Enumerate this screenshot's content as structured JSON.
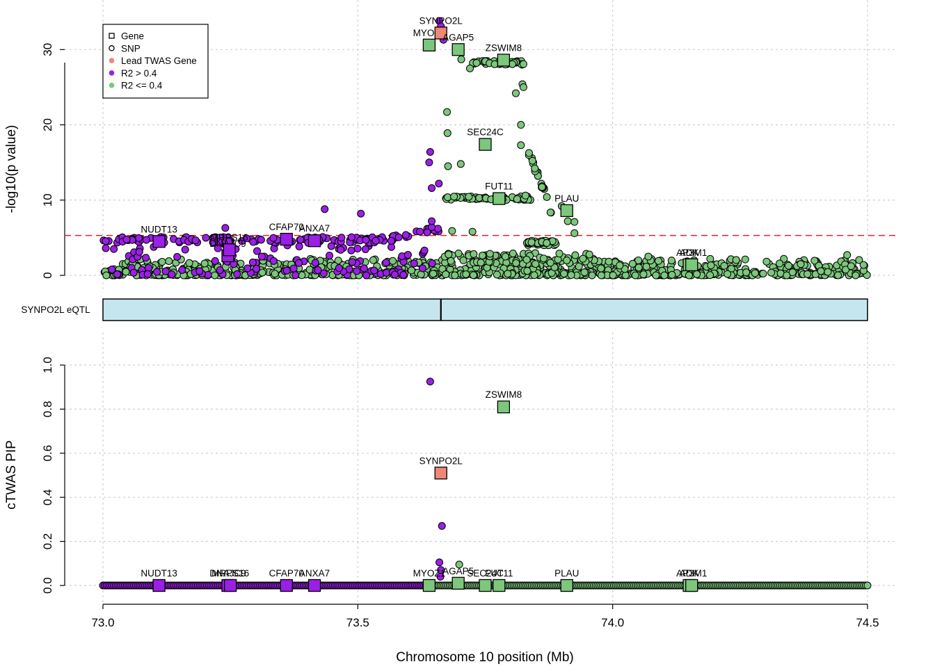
{
  "colors": {
    "purple": "#9B1FE6",
    "green": "#7DC77C",
    "salmon": "#F08674",
    "eqtl_fill": "#C4E6EF",
    "threshold": "#E0202B"
  },
  "legend": [
    {
      "label": "Gene",
      "kind": "gene-open"
    },
    {
      "label": "SNP",
      "kind": "snp-open"
    },
    {
      "label": "Lead TWAS Gene",
      "kind": "salmon"
    },
    {
      "label": "R2 > 0.4",
      "kind": "purple"
    },
    {
      "label": "R2 <= 0.4",
      "kind": "green"
    }
  ],
  "eqtl_track": {
    "label": "SYNPO2L eQTL",
    "start": 73.0,
    "end": 74.5,
    "marker": 73.663
  },
  "chart_data": [
    {
      "type": "scatter",
      "name": "association",
      "xlabel": "",
      "ylabel": "-log10(p value)",
      "xlim": [
        73.0,
        74.5
      ],
      "ylim": [
        0,
        34
      ],
      "yticks": [
        0,
        10,
        20,
        30
      ],
      "ytick_labels": [
        "0",
        "10",
        "20",
        "30"
      ],
      "threshold": 5.3,
      "genes": [
        {
          "name": "NUDT13",
          "x": 73.11,
          "y": 4.5,
          "color": "purple",
          "lead": false
        },
        {
          "name": "DNAJC9",
          "x": 73.245,
          "y": 2.6,
          "color": "purple",
          "lead": false
        },
        {
          "name": "MRPS16",
          "x": 73.248,
          "y": 3.4,
          "color": "purple",
          "lead": false
        },
        {
          "name": "CFAP70",
          "x": 73.36,
          "y": 4.8,
          "color": "purple",
          "lead": false
        },
        {
          "name": "ANXA7",
          "x": 73.415,
          "y": 4.6,
          "color": "purple",
          "lead": false
        },
        {
          "name": "MYOZ1",
          "x": 73.64,
          "y": 30.6,
          "color": "green",
          "lead": false
        },
        {
          "name": "SYNPO2L",
          "x": 73.663,
          "y": 32.2,
          "color": "salmon",
          "lead": true
        },
        {
          "name": "AGAP5",
          "x": 73.697,
          "y": 30.0,
          "color": "green",
          "lead": false
        },
        {
          "name": "ZSWIM8",
          "x": 73.786,
          "y": 28.6,
          "color": "green",
          "lead": false
        },
        {
          "name": "SEC24C",
          "x": 73.75,
          "y": 17.4,
          "color": "green",
          "lead": false
        },
        {
          "name": "FUT11",
          "x": 73.777,
          "y": 10.2,
          "color": "green",
          "lead": false
        },
        {
          "name": "PLAU",
          "x": 73.91,
          "y": 8.6,
          "color": "green",
          "lead": false
        },
        {
          "name": "ADK",
          "x": 74.15,
          "y": 1.4,
          "color": "green",
          "lead": false
        },
        {
          "name": "AP3M1",
          "x": 74.155,
          "y": 1.4,
          "color": "green",
          "lead": false
        }
      ],
      "snp_highlights": [
        {
          "x": 73.66,
          "y": 33.8,
          "color": "purple"
        },
        {
          "x": 73.663,
          "y": 33.1,
          "color": "purple"
        },
        {
          "x": 73.668,
          "y": 31.3,
          "color": "purple"
        },
        {
          "x": 73.642,
          "y": 16.4,
          "color": "purple"
        },
        {
          "x": 73.64,
          "y": 15.0,
          "color": "purple"
        },
        {
          "x": 73.645,
          "y": 11.6,
          "color": "purple"
        },
        {
          "x": 73.659,
          "y": 12.2,
          "color": "purple"
        },
        {
          "x": 73.645,
          "y": 7.2,
          "color": "purple"
        },
        {
          "x": 73.435,
          "y": 8.8,
          "color": "purple"
        },
        {
          "x": 73.506,
          "y": 8.2,
          "color": "purple"
        },
        {
          "x": 73.24,
          "y": 6.3,
          "color": "purple"
        },
        {
          "x": 73.675,
          "y": 21.7,
          "color": "green"
        },
        {
          "x": 73.676,
          "y": 18.9,
          "color": "green"
        },
        {
          "x": 73.677,
          "y": 14.5,
          "color": "green"
        },
        {
          "x": 73.702,
          "y": 14.8,
          "color": "green"
        },
        {
          "x": 73.703,
          "y": 28.7,
          "color": "green"
        },
        {
          "x": 73.72,
          "y": 27.5,
          "color": "green"
        },
        {
          "x": 73.823,
          "y": 25.4,
          "color": "green"
        },
        {
          "x": 73.825,
          "y": 25.0,
          "color": "green"
        },
        {
          "x": 73.81,
          "y": 24.2,
          "color": "green"
        },
        {
          "x": 73.82,
          "y": 20.0,
          "color": "green"
        },
        {
          "x": 73.82,
          "y": 17.3,
          "color": "green"
        },
        {
          "x": 73.9,
          "y": 9.2,
          "color": "green"
        },
        {
          "x": 73.912,
          "y": 7.2,
          "color": "green"
        },
        {
          "x": 73.925,
          "y": 7.1,
          "color": "green"
        },
        {
          "x": 73.925,
          "y": 5.6,
          "color": "green"
        },
        {
          "x": 73.685,
          "y": 5.9,
          "color": "green"
        },
        {
          "x": 73.725,
          "y": 5.8,
          "color": "green"
        },
        {
          "x": 73.829,
          "y": 10.6,
          "color": "green"
        },
        {
          "x": 74.07,
          "y": 2.5,
          "color": "green"
        },
        {
          "x": 74.46,
          "y": 2.7,
          "color": "green"
        }
      ]
    },
    {
      "type": "scatter",
      "name": "pip",
      "xlabel": "Chromosome 10 position (Mb)",
      "ylabel": "cTWAS PIP",
      "xlim": [
        73.0,
        74.5
      ],
      "ylim": [
        0,
        1
      ],
      "xticks": [
        73.0,
        73.5,
        74.0,
        74.5
      ],
      "xtick_labels": [
        "73.0",
        "73.5",
        "74.0",
        "74.5"
      ],
      "yticks": [
        0.0,
        0.2,
        0.4,
        0.6,
        0.8,
        1.0
      ],
      "ytick_labels": [
        "0.0",
        "0.2",
        "0.4",
        "0.6",
        "0.8",
        "1.0"
      ],
      "genes": [
        {
          "name": "NUDT13",
          "x": 73.11,
          "y": 0.0,
          "color": "purple"
        },
        {
          "name": "DNAJC9",
          "x": 73.245,
          "y": 0.0,
          "color": "purple"
        },
        {
          "name": "MRPS16",
          "x": 73.25,
          "y": 0.0,
          "color": "purple"
        },
        {
          "name": "CFAP70",
          "x": 73.36,
          "y": 0.0,
          "color": "purple"
        },
        {
          "name": "ANXA7",
          "x": 73.415,
          "y": 0.0,
          "color": "purple"
        },
        {
          "name": "MYOZ1",
          "x": 73.64,
          "y": 0.0,
          "color": "green"
        },
        {
          "name": "SYNPO2L",
          "x": 73.663,
          "y": 0.51,
          "color": "salmon"
        },
        {
          "name": "AGAP5",
          "x": 73.697,
          "y": 0.01,
          "color": "green"
        },
        {
          "name": "SEC24C",
          "x": 73.75,
          "y": 0.0,
          "color": "green"
        },
        {
          "name": "FUT11",
          "x": 73.777,
          "y": 0.0,
          "color": "green"
        },
        {
          "name": "ZSWIM8",
          "x": 73.786,
          "y": 0.81,
          "color": "green"
        },
        {
          "name": "PLAU",
          "x": 73.91,
          "y": 0.0,
          "color": "green"
        },
        {
          "name": "ADK",
          "x": 74.15,
          "y": 0.0,
          "color": "green"
        },
        {
          "name": "AP3M1",
          "x": 74.155,
          "y": 0.0,
          "color": "green"
        }
      ],
      "snps": [
        {
          "x": 73.642,
          "y": 0.925,
          "color": "purple"
        },
        {
          "x": 73.665,
          "y": 0.27,
          "color": "purple"
        },
        {
          "x": 73.66,
          "y": 0.105,
          "color": "purple"
        },
        {
          "x": 73.663,
          "y": 0.07,
          "color": "purple"
        },
        {
          "x": 73.662,
          "y": 0.04,
          "color": "purple"
        },
        {
          "x": 73.699,
          "y": 0.095,
          "color": "green"
        }
      ]
    }
  ]
}
